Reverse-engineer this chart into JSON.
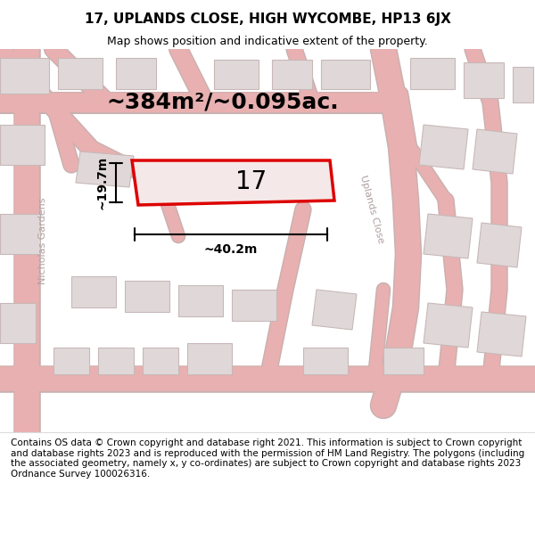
{
  "title": "17, UPLANDS CLOSE, HIGH WYCOMBE, HP13 6JX",
  "subtitle": "Map shows position and indicative extent of the property.",
  "area_text": "~384m²/~0.095ac.",
  "property_number": "17",
  "dim_width": "~40.2m",
  "dim_height": "~19.7m",
  "footer_text": "Contains OS data © Crown copyright and database right 2021. This information is subject to Crown copyright and database rights 2023 and is reproduced with the permission of HM Land Registry. The polygons (including the associated geometry, namely x, y co-ordinates) are subject to Crown copyright and database rights 2023 Ordnance Survey 100026316.",
  "bg_color": "#f5f0f0",
  "map_bg": "#f0e8e8",
  "road_color": "#e8b0b0",
  "road_fill": "#d8c8c8",
  "building_fill": "#e0d8d8",
  "building_stroke": "#c8b8b8",
  "property_fill": "#f0e0e0",
  "property_stroke": "#dd0000",
  "street_label_color": "#b0a0a0",
  "title_fontsize": 11,
  "subtitle_fontsize": 9,
  "area_fontsize": 18,
  "number_fontsize": 20,
  "dim_fontsize": 10,
  "footer_fontsize": 7.5
}
